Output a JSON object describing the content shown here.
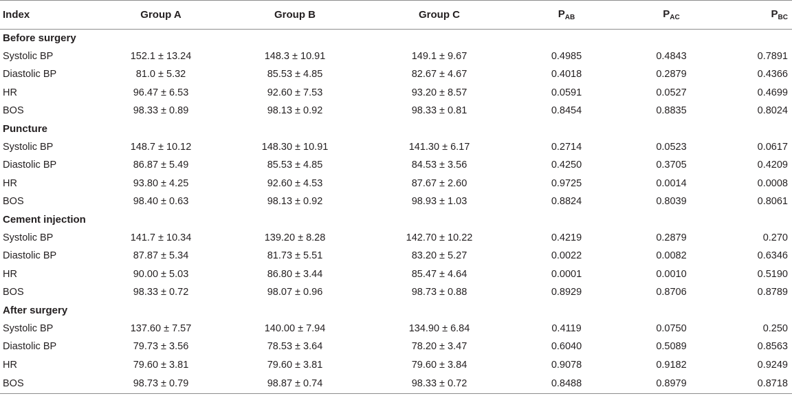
{
  "header": {
    "index": "Index",
    "group_a": "Group A",
    "group_b": "Group B",
    "group_c": "Group C",
    "p_ab": {
      "main": "P",
      "sub": "AB"
    },
    "p_ac": {
      "main": "P",
      "sub": "AC"
    },
    "p_bc": {
      "main": "P",
      "sub": "BC"
    }
  },
  "sections": [
    {
      "title": "Before surgery",
      "rows": [
        {
          "index": "Systolic BP",
          "a": "152.1 ± 13.24",
          "b": "148.3 ± 10.91",
          "c": "149.1 ± 9.67",
          "pab": "0.4985",
          "pac": "0.4843",
          "pbc": "0.7891"
        },
        {
          "index": "Diastolic BP",
          "a": "81.0 ± 5.32",
          "b": "85.53 ± 4.85",
          "c": "82.67 ± 4.67",
          "pab": "0.4018",
          "pac": "0.2879",
          "pbc": "0.4366"
        },
        {
          "index": "HR",
          "a": "96.47 ± 6.53",
          "b": "92.60 ± 7.53",
          "c": "93.20 ± 8.57",
          "pab": "0.0591",
          "pac": "0.0527",
          "pbc": "0.4699"
        },
        {
          "index": "BOS",
          "a": "98.33 ± 0.89",
          "b": "98.13 ± 0.92",
          "c": "98.33 ± 0.81",
          "pab": "0.8454",
          "pac": "0.8835",
          "pbc": "0.8024"
        }
      ]
    },
    {
      "title": "Puncture",
      "rows": [
        {
          "index": "Systolic BP",
          "a": "148.7 ± 10.12",
          "b": "148.30 ± 10.91",
          "c": "141.30 ± 6.17",
          "pab": "0.2714",
          "pac": "0.0523",
          "pbc": "0.0617"
        },
        {
          "index": "Diastolic BP",
          "a": "86.87 ± 5.49",
          "b": "85.53 ± 4.85",
          "c": "84.53 ± 3.56",
          "pab": "0.4250",
          "pac": "0.3705",
          "pbc": "0.4209"
        },
        {
          "index": "HR",
          "a": "93.80 ± 4.25",
          "b": "92.60 ± 4.53",
          "c": "87.67 ± 2.60",
          "pab": "0.9725",
          "pac": "0.0014",
          "pbc": "0.0008"
        },
        {
          "index": "BOS",
          "a": "98.40 ± 0.63",
          "b": "98.13 ± 0.92",
          "c": "98.93 ± 1.03",
          "pab": "0.8824",
          "pac": "0.8039",
          "pbc": "0.8061"
        }
      ]
    },
    {
      "title": "Cement injection",
      "rows": [
        {
          "index": "Systolic BP",
          "a": "141.7 ± 10.34",
          "b": "139.20 ± 8.28",
          "c": "142.70 ± 10.22",
          "pab": "0.4219",
          "pac": "0.2879",
          "pbc": "0.270"
        },
        {
          "index": "Diastolic BP",
          "a": "87.87 ± 5.34",
          "b": "81.73 ± 5.51",
          "c": "83.20 ± 5.27",
          "pab": "0.0022",
          "pac": "0.0082",
          "pbc": "0.6346"
        },
        {
          "index": "HR",
          "a": "90.00 ± 5.03",
          "b": "86.80 ± 3.44",
          "c": "85.47 ± 4.64",
          "pab": "0.0001",
          "pac": "0.0010",
          "pbc": "0.5190"
        },
        {
          "index": "BOS",
          "a": "98.33 ± 0.72",
          "b": "98.07 ± 0.96",
          "c": "98.73 ± 0.88",
          "pab": "0.8929",
          "pac": "0.8706",
          "pbc": "0.8789"
        }
      ]
    },
    {
      "title": "After surgery",
      "rows": [
        {
          "index": "Systolic BP",
          "a": "137.60 ± 7.57",
          "b": "140.00 ± 7.94",
          "c": "134.90 ± 6.84",
          "pab": "0.4119",
          "pac": "0.0750",
          "pbc": "0.250"
        },
        {
          "index": "Diastolic BP",
          "a": "79.73 ± 3.56",
          "b": "78.53 ± 3.64",
          "c": "78.20 ± 3.47",
          "pab": "0.6040",
          "pac": "0.5089",
          "pbc": "0.8563"
        },
        {
          "index": "HR",
          "a": "79.60 ± 3.81",
          "b": "79.60 ± 3.81",
          "c": "79.60 ± 3.84",
          "pab": "0.9078",
          "pac": "0.9182",
          "pbc": "0.9249"
        },
        {
          "index": "BOS",
          "a": "98.73 ± 0.79",
          "b": "98.87 ± 0.74",
          "c": "98.33 ± 0.72",
          "pab": "0.8488",
          "pac": "0.8979",
          "pbc": "0.8718"
        }
      ]
    }
  ]
}
